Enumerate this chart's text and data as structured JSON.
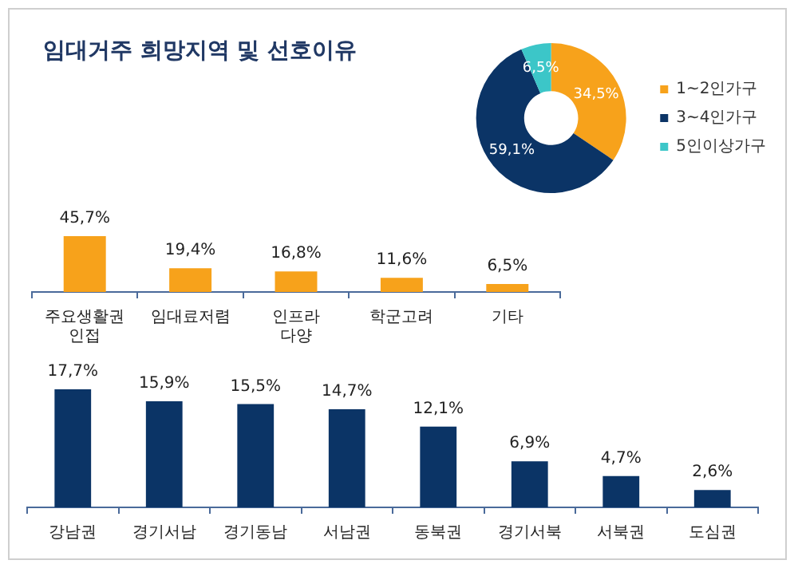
{
  "chart_data": [
    {
      "type": "donut",
      "title": "임대거주 희망지역 및 선호이유",
      "categories": [
        "1~2인가구",
        "3~4인가구",
        "5인이상가구"
      ],
      "values": [
        34.5,
        59.1,
        6.5
      ],
      "value_labels": [
        "34,5%",
        "59,1%",
        "6,5%"
      ],
      "colors": [
        "#f7a21b",
        "#0b3466",
        "#3cc6c8"
      ],
      "legend": "right"
    },
    {
      "type": "bar",
      "categories": [
        "주요생활권 인접",
        "임대료저렴",
        "인프라 다양",
        "학군고려",
        "기타"
      ],
      "values": [
        45.7,
        19.4,
        16.8,
        11.6,
        6.5
      ],
      "value_labels": [
        "45,7%",
        "19,4%",
        "16,8%",
        "11,6%",
        "6,5%"
      ],
      "color": "#f7a21b",
      "tick_labels": "x"
    },
    {
      "type": "bar",
      "categories": [
        "강남권",
        "경기서남",
        "경기동남",
        "서남권",
        "동북권",
        "경기서북",
        "서북권",
        "도심권"
      ],
      "values": [
        17.7,
        15.9,
        15.5,
        14.7,
        12.1,
        6.9,
        4.7,
        2.6
      ],
      "value_labels": [
        "17,7%",
        "15,9%",
        "15,5%",
        "14,7%",
        "12,1%",
        "6,9%",
        "4,7%",
        "2,6%"
      ],
      "color": "#0b3466",
      "tick_labels": "x"
    }
  ]
}
